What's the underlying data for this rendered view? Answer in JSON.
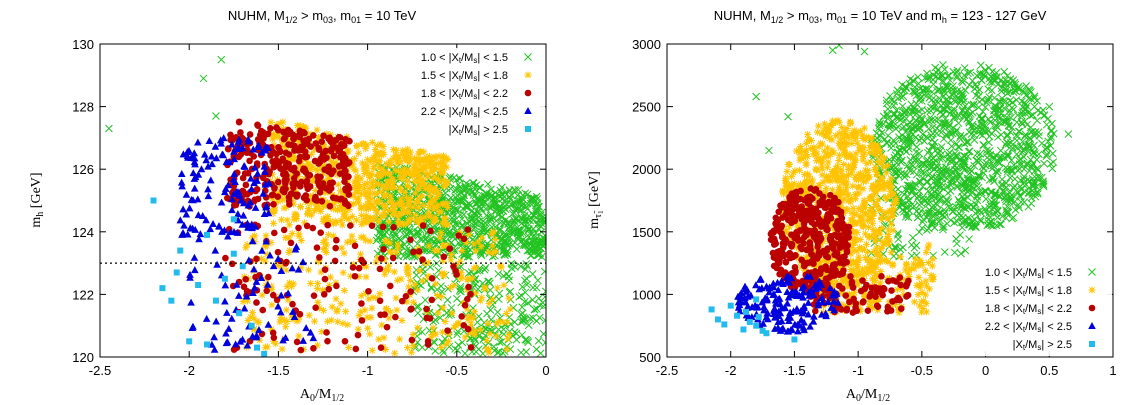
{
  "chart_data": [
    {
      "type": "scatter",
      "title": {
        "t1": "NUHM, M",
        "s1": "1/2",
        "t2": " > m",
        "s2": "03",
        "t3": ", m",
        "s3": "01",
        "t4": " = 10 TeV"
      },
      "xlabel": {
        "main": "A",
        "s1": "0",
        "mid": "/M",
        "s2": "1/2"
      },
      "ylabel": {
        "main": "m",
        "sub": "h",
        "rest": " [GeV]"
      },
      "xlim": [
        -2.5,
        0
      ],
      "ylim": [
        120,
        130
      ],
      "xticks": [
        -2.5,
        -2,
        -1.5,
        -1,
        -0.5,
        0
      ],
      "yticks": [
        120,
        122,
        124,
        126,
        128,
        130
      ],
      "reference_line": {
        "y": 123,
        "style": "dotted"
      },
      "legend_position": "top-right",
      "series": [
        {
          "name": "1.0 < |X_t/M_s| < 1.5",
          "color": "#22c322",
          "marker": "cross"
        },
        {
          "name": "1.5 < |X_t/M_s| < 1.8",
          "color": "#ffc300",
          "marker": "star"
        },
        {
          "name": "1.8 < |X_t/M_s| < 2.2",
          "color": "#bb0000",
          "marker": "circle"
        },
        {
          "name": "2.2 < |X_t/M_s| < 2.5",
          "color": "#0000dd",
          "marker": "triangle"
        },
        {
          "name": "|X_t/M_s| > 2.5",
          "color": "#22bbee",
          "marker": "square"
        }
      ],
      "regions": [
        {
          "series": 0,
          "points": [
            [
              -2.45,
              127.3
            ],
            [
              -1.92,
              128.9
            ],
            [
              -1.82,
              129.5
            ],
            [
              -1.85,
              127.7
            ],
            [
              -0.8,
              125.2
            ],
            [
              -0.6,
              125.0
            ],
            [
              -0.4,
              124.6
            ],
            [
              -0.2,
              124.2
            ],
            [
              -0.05,
              123.8
            ]
          ],
          "clusters": [
            {
              "n": 900,
              "x": [
                -0.95,
                0
              ],
              "y": [
                123.2,
                125.7
              ],
              "trend": -1.1
            },
            {
              "n": 260,
              "x": [
                -0.75,
                0
              ],
              "y": [
                120.1,
                123.0
              ],
              "trend": 0
            }
          ]
        },
        {
          "series": 1,
          "points": [],
          "clusters": [
            {
              "n": 700,
              "x": [
                -1.55,
                -0.55
              ],
              "y": [
                124.2,
                127.0
              ],
              "trend": -1.2
            },
            {
              "n": 320,
              "x": [
                -1.7,
                -0.2
              ],
              "y": [
                120.1,
                124.0
              ],
              "trend": 0
            }
          ]
        },
        {
          "series": 2,
          "points": [],
          "clusters": [
            {
              "n": 320,
              "x": [
                -1.8,
                -1.1
              ],
              "y": [
                124.8,
                127.3
              ],
              "trend": -0.8
            },
            {
              "n": 130,
              "x": [
                -1.8,
                -0.4
              ],
              "y": [
                120.2,
                124.3
              ],
              "trend": 0
            }
          ]
        },
        {
          "series": 3,
          "points": [],
          "clusters": [
            {
              "n": 130,
              "x": [
                -2.05,
                -1.55
              ],
              "y": [
                123.8,
                127.0
              ],
              "trend": 0
            },
            {
              "n": 70,
              "x": [
                -2.0,
                -1.3
              ],
              "y": [
                120.2,
                123.8
              ],
              "trend": 0
            }
          ]
        },
        {
          "series": 4,
          "points": [
            [
              -2.2,
              125.0
            ],
            [
              -2.15,
              122.2
            ],
            [
              -2.1,
              121.8
            ],
            [
              -2.07,
              122.7
            ],
            [
              -2.05,
              123.4
            ],
            [
              -2.0,
              120.5
            ],
            [
              -1.95,
              122.3
            ],
            [
              -1.9,
              120.4
            ],
            [
              -1.85,
              121.8
            ],
            [
              -1.8,
              122.5
            ],
            [
              -1.75,
              123.3
            ],
            [
              -1.7,
              122.9
            ],
            [
              -1.65,
              121.0
            ],
            [
              -1.62,
              120.3
            ],
            [
              -1.58,
              120.1
            ],
            [
              -1.72,
              121.4
            ],
            [
              -1.9,
              123.9
            ],
            [
              -1.75,
              124.4
            ]
          ],
          "clusters": []
        }
      ]
    },
    {
      "type": "scatter",
      "title": {
        "t1": "NUHM, M",
        "s1": "1/2",
        "t2": " > m",
        "s2": "03",
        "t3": ", m",
        "s3": "01",
        "t4": " = 10 TeV and m",
        "s4": "h",
        "t5": " = 123 - 127 GeV"
      },
      "xlabel": {
        "main": "A",
        "s1": "0",
        "mid": "/M",
        "s2": "1/2"
      },
      "ylabel": {
        "main": "m",
        "sub": "τ̃",
        "sub2": "1",
        "rest": " [GeV]"
      },
      "xlim": [
        -2.5,
        1
      ],
      "ylim": [
        500,
        3000
      ],
      "xticks": [
        -2.5,
        -2,
        -1.5,
        -1,
        -0.5,
        0,
        0.5,
        1
      ],
      "yticks": [
        500,
        1000,
        1500,
        2000,
        2500,
        3000
      ],
      "legend_position": "bottom-right",
      "series": [
        {
          "name": "1.0 < |X_t/M_s| < 1.5",
          "color": "#22c322",
          "marker": "cross"
        },
        {
          "name": "1.5 < |X_t/M_s| < 1.8",
          "color": "#ffc300",
          "marker": "star"
        },
        {
          "name": "1.8 < |X_t/M_s| < 2.2",
          "color": "#bb0000",
          "marker": "circle"
        },
        {
          "name": "2.2 < |X_t/M_s| < 2.5",
          "color": "#0000dd",
          "marker": "triangle"
        },
        {
          "name": "|X_t/M_s| > 2.5",
          "color": "#22bbee",
          "marker": "square"
        }
      ],
      "regions": [
        {
          "series": 0,
          "points": [
            [
              -1.8,
              2580
            ],
            [
              -1.7,
              2150
            ],
            [
              -1.55,
              2420
            ],
            [
              -1.2,
              2950
            ],
            [
              -1.15,
              2990
            ],
            [
              -0.95,
              2940
            ],
            [
              0.65,
              2280
            ],
            [
              0.5,
              2500
            ]
          ],
          "clusters": [
            {
              "n": 1100,
              "x": [
                -0.9,
                0.55
              ],
              "y": [
                1500,
                2850
              ],
              "trend": 0,
              "ellipse": true
            },
            {
              "n": 120,
              "x": [
                -0.9,
                -0.1
              ],
              "y": [
                1300,
                2000
              ],
              "trend": 0
            }
          ]
        },
        {
          "series": 1,
          "points": [],
          "clusters": [
            {
              "n": 750,
              "x": [
                -1.6,
                -0.7
              ],
              "y": [
                1050,
                2400
              ],
              "trend": 0,
              "ellipse": true
            },
            {
              "n": 200,
              "x": [
                -1.3,
                -0.4
              ],
              "y": [
                850,
                1400
              ],
              "trend": 0
            }
          ]
        },
        {
          "series": 2,
          "points": [],
          "clusters": [
            {
              "n": 360,
              "x": [
                -1.7,
                -1.05
              ],
              "y": [
                1000,
                1850
              ],
              "trend": 0,
              "ellipse": true
            },
            {
              "n": 90,
              "x": [
                -1.4,
                -0.6
              ],
              "y": [
                850,
                1150
              ],
              "trend": 0
            }
          ]
        },
        {
          "series": 3,
          "points": [],
          "clusters": [
            {
              "n": 170,
              "x": [
                -1.95,
                -1.15
              ],
              "y": [
                700,
                1180
              ],
              "trend": 0,
              "ellipse": true
            }
          ]
        },
        {
          "series": 4,
          "points": [
            [
              -2.15,
              880
            ],
            [
              -2.1,
              800
            ],
            [
              -2.05,
              760
            ],
            [
              -2.0,
              910
            ],
            [
              -1.95,
              830
            ],
            [
              -1.9,
              720
            ],
            [
              -1.85,
              780
            ],
            [
              -1.8,
              750
            ],
            [
              -1.75,
              710
            ],
            [
              -1.72,
              690
            ],
            [
              -1.8,
              960
            ],
            [
              -1.88,
              860
            ],
            [
              -1.78,
              820
            ],
            [
              -1.5,
              640
            ]
          ],
          "clusters": []
        }
      ]
    }
  ],
  "legend_text": {
    "r1": {
      "a": "1.0 < |X",
      "s1": "t",
      "b": "/M",
      "s2": "s",
      "c": "| < 1.5"
    },
    "r2": {
      "a": "1.5 < |X",
      "s1": "t",
      "b": "/M",
      "s2": "s",
      "c": "| < 1.8"
    },
    "r3": {
      "a": "1.8 < |X",
      "s1": "t",
      "b": "/M",
      "s2": "s",
      "c": "| < 2.2"
    },
    "r4": {
      "a": "2.2 < |X",
      "s1": "t",
      "b": "/M",
      "s2": "s",
      "c": "| < 2.5"
    },
    "r5": {
      "a": "|X",
      "s1": "t",
      "b": "/M",
      "s2": "s",
      "c": "| > 2.5"
    }
  }
}
